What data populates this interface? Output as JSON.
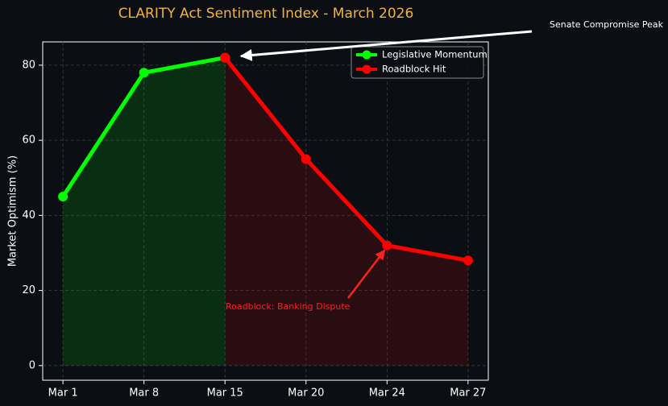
{
  "chart_data": {
    "type": "line",
    "title": "CLARITY Act Sentiment Index - March 2026",
    "y_label": "Market Optimism (%)",
    "categories": [
      "Mar 1",
      "Mar 8",
      "Mar 15",
      "Mar 20",
      "Mar 24",
      "Mar 27"
    ],
    "series": [
      {
        "name": "Legislative Momentum",
        "color": "#00ff00",
        "values": [
          45,
          78,
          82,
          null,
          null,
          null
        ]
      },
      {
        "name": "Roadblock Hit",
        "color": "#ff0000",
        "values": [
          null,
          null,
          82,
          55,
          32,
          28
        ]
      }
    ],
    "ylim": [
      -3.9,
      86.2
    ],
    "yticks": [
      0,
      20,
      40,
      60,
      80
    ],
    "grid": true,
    "legend": "upper right",
    "annotations": [
      "Senate Compromise Peak",
      "Roadblock: Banking Dispute"
    ]
  }
}
